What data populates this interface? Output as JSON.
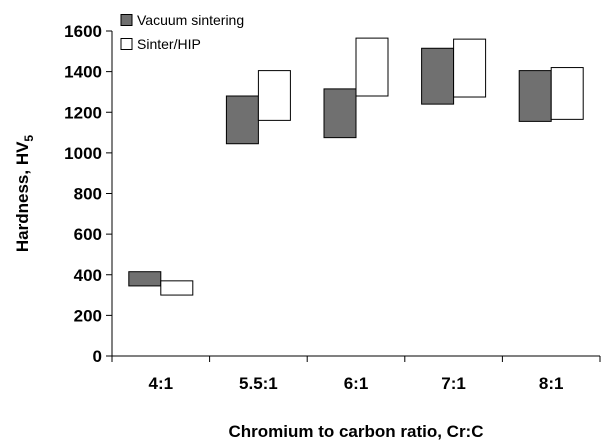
{
  "chart_data": {
    "type": "bar",
    "subtype": "floating-range",
    "categories": [
      "4:1",
      "5.5:1",
      "6:1",
      "7:1",
      "8:1"
    ],
    "series": [
      {
        "name": "Vacuum sintering",
        "color": "#707070",
        "ranges": [
          [
            345,
            415
          ],
          [
            1045,
            1280
          ],
          [
            1075,
            1315
          ],
          [
            1240,
            1515
          ],
          [
            1155,
            1405
          ]
        ]
      },
      {
        "name": "Sinter/HIP",
        "color": "#ffffff",
        "ranges": [
          [
            300,
            370
          ],
          [
            1160,
            1405
          ],
          [
            1280,
            1565
          ],
          [
            1275,
            1560
          ],
          [
            1165,
            1420
          ]
        ]
      }
    ],
    "ylim": [
      0,
      1600
    ],
    "yticks": [
      0,
      200,
      400,
      600,
      800,
      1000,
      1200,
      1400,
      1600
    ],
    "xlabel": "Chromium to carbon ratio, Cr:C",
    "ylabel": "Hardness, HV",
    "ylabel_subscript": "5",
    "legend_position": "top-left",
    "grid": false
  }
}
